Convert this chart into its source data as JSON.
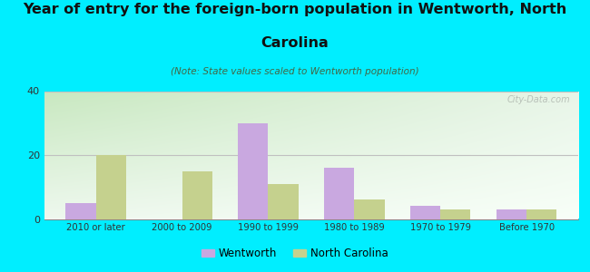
{
  "title_line1": "Year of entry for the foreign-born population in Wentworth, North",
  "title_line2": "Carolina",
  "subtitle": "(Note: State values scaled to Wentworth population)",
  "categories": [
    "2010 or later",
    "2000 to 2009",
    "1990 to 1999",
    "1980 to 1989",
    "1970 to 1979",
    "Before 1970"
  ],
  "wentworth_values": [
    5,
    0,
    30,
    16,
    4,
    3
  ],
  "nc_values": [
    20,
    15,
    11,
    6,
    3,
    3
  ],
  "wentworth_color": "#c9a8e0",
  "nc_color": "#c5d18e",
  "background_outer": "#00eeff",
  "ylim": [
    0,
    40
  ],
  "yticks": [
    0,
    20,
    40
  ],
  "bar_width": 0.35,
  "title_fontsize": 11.5,
  "subtitle_fontsize": 7.5,
  "watermark": "City-Data.com",
  "legend_labels": [
    "Wentworth",
    "North Carolina"
  ],
  "grid_color": "#c0c0c0"
}
